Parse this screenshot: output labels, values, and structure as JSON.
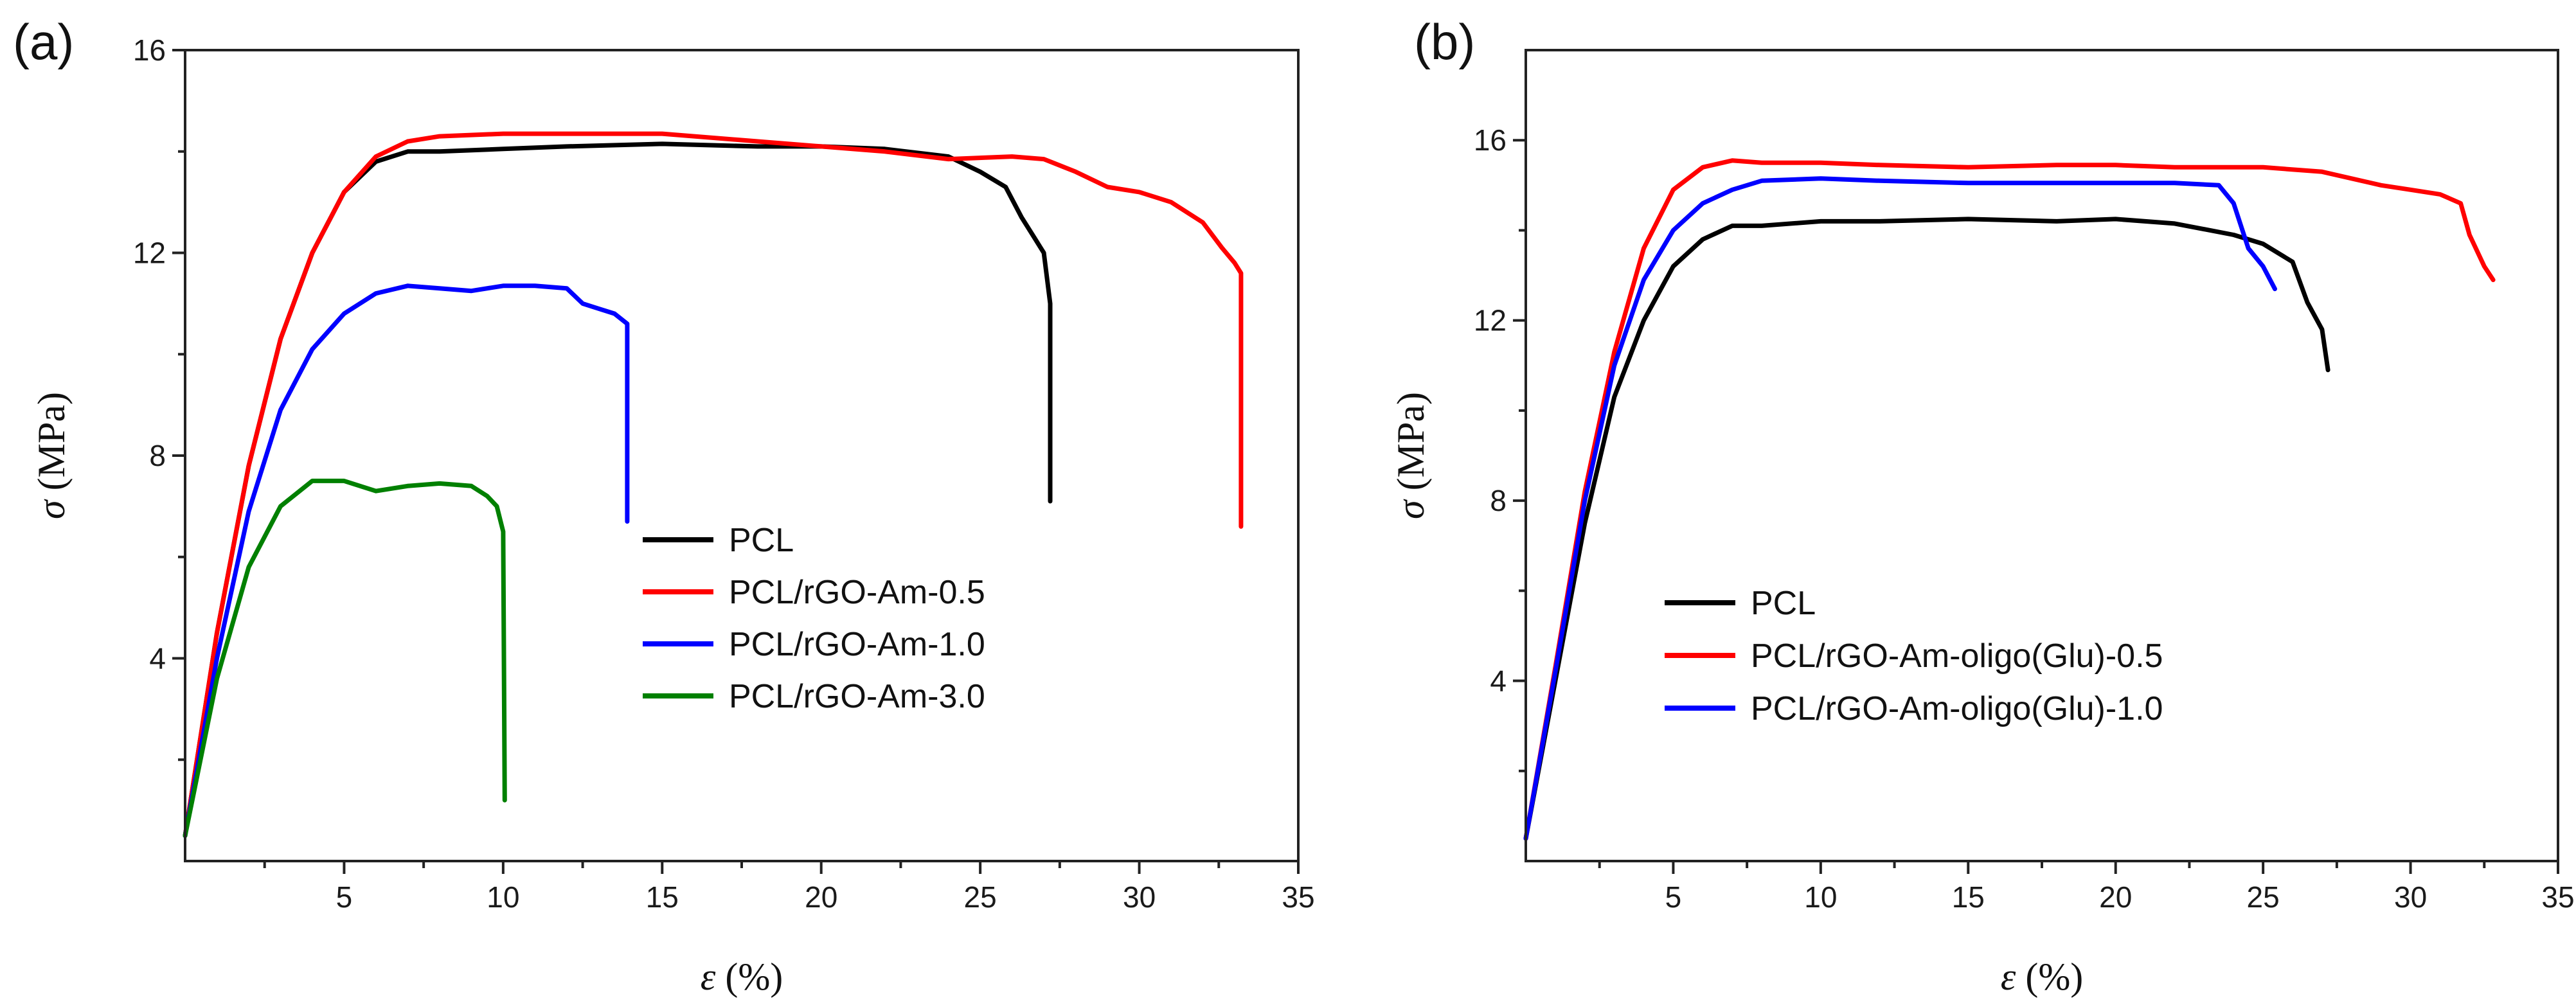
{
  "chart_data": [
    {
      "type": "line",
      "panel_label": "(a)",
      "xlabel": "ε (%)",
      "xlabel_symbol": "ε",
      "xlabel_unit": " (%)",
      "ylabel": "σ (MPa)",
      "ylabel_symbol": "σ",
      "ylabel_unit": " (MPa)",
      "xlim": [
        0,
        35
      ],
      "ylim": [
        0,
        16
      ],
      "xticks": [
        5,
        10,
        15,
        20,
        25,
        30,
        35
      ],
      "yticks": [
        4,
        8,
        12,
        16
      ],
      "grid": false,
      "legend_position": "center-right",
      "series": [
        {
          "name": "PCL",
          "color": "#000000",
          "x": [
            0,
            1,
            2,
            3,
            4,
            5,
            6,
            7,
            8,
            10,
            12,
            15,
            18,
            20,
            22,
            24,
            25,
            25.8,
            26.3,
            26.7,
            27.0,
            27.2,
            27.2
          ],
          "y": [
            0.5,
            4.5,
            7.8,
            10.3,
            12.0,
            13.2,
            13.8,
            14.0,
            14.0,
            14.05,
            14.1,
            14.15,
            14.1,
            14.1,
            14.05,
            13.9,
            13.6,
            13.3,
            12.7,
            12.3,
            12.0,
            11.0,
            7.1
          ]
        },
        {
          "name": "PCL/rGO-Am-0.5",
          "color": "#ff0000",
          "x": [
            0,
            1,
            2,
            3,
            4,
            5,
            6,
            7,
            8,
            10,
            12,
            15,
            18,
            20,
            22,
            24,
            26,
            27,
            28,
            29,
            30,
            31,
            32,
            32.6,
            33.0,
            33.2,
            33.2
          ],
          "y": [
            0.5,
            4.5,
            7.8,
            10.3,
            12.0,
            13.2,
            13.9,
            14.2,
            14.3,
            14.35,
            14.35,
            14.35,
            14.2,
            14.1,
            14.0,
            13.85,
            13.9,
            13.85,
            13.6,
            13.3,
            13.2,
            13.0,
            12.6,
            12.1,
            11.8,
            11.6,
            6.6
          ]
        },
        {
          "name": "PCL/rGO-Am-1.0",
          "color": "#0000ff",
          "x": [
            0,
            1,
            2,
            3,
            4,
            5,
            6,
            7,
            8,
            9,
            10,
            11,
            12,
            12.5,
            13.0,
            13.5,
            13.9,
            13.9
          ],
          "y": [
            0.5,
            4.0,
            6.9,
            8.9,
            10.1,
            10.8,
            11.2,
            11.35,
            11.3,
            11.25,
            11.35,
            11.35,
            11.3,
            11.0,
            10.9,
            10.8,
            10.6,
            6.7
          ]
        },
        {
          "name": "PCL/rGO-Am-3.0",
          "color": "#008000",
          "x": [
            0,
            1,
            2,
            3,
            4,
            5,
            6,
            7,
            8,
            9,
            9.5,
            9.8,
            10.0,
            10.05
          ],
          "y": [
            0.5,
            3.6,
            5.8,
            7.0,
            7.5,
            7.5,
            7.3,
            7.4,
            7.45,
            7.4,
            7.2,
            7.0,
            6.5,
            1.2
          ]
        }
      ]
    },
    {
      "type": "line",
      "panel_label": "(b)",
      "xlabel": "ε (%)",
      "xlabel_symbol": "ε",
      "xlabel_unit": " (%)",
      "ylabel": "σ (MPa)",
      "ylabel_symbol": "σ",
      "ylabel_unit": " (MPa)",
      "xlim": [
        0,
        35
      ],
      "ylim": [
        0,
        18
      ],
      "xticks": [
        5,
        10,
        15,
        20,
        25,
        30,
        35
      ],
      "yticks": [
        4,
        8,
        12,
        16
      ],
      "grid": false,
      "legend_position": "bottom-center",
      "series": [
        {
          "name": "PCL",
          "color": "#000000",
          "x": [
            0,
            1,
            2,
            3,
            4,
            5,
            6,
            7,
            8,
            10,
            12,
            15,
            18,
            20,
            22,
            24,
            25,
            26,
            26.5,
            27.0,
            27.2
          ],
          "y": [
            0.5,
            4.0,
            7.5,
            10.3,
            12.0,
            13.2,
            13.8,
            14.1,
            14.1,
            14.2,
            14.2,
            14.25,
            14.2,
            14.25,
            14.15,
            13.9,
            13.7,
            13.3,
            12.4,
            11.8,
            10.9
          ]
        },
        {
          "name": "PCL/rGO-Am-oligo(Glu)-0.5",
          "color": "#ff0000",
          "x": [
            0,
            1,
            2,
            3,
            4,
            5,
            6,
            7,
            8,
            10,
            12,
            15,
            18,
            20,
            22,
            25,
            27,
            29,
            30,
            31,
            31.7,
            32.0,
            32.5,
            32.8
          ],
          "y": [
            0.5,
            4.3,
            8.2,
            11.3,
            13.6,
            14.9,
            15.4,
            15.55,
            15.5,
            15.5,
            15.45,
            15.4,
            15.45,
            15.45,
            15.4,
            15.4,
            15.3,
            15.0,
            14.9,
            14.8,
            14.6,
            13.9,
            13.2,
            12.9
          ]
        },
        {
          "name": "PCL/rGO-Am-oligo(Glu)-1.0",
          "color": "#0000ff",
          "x": [
            0,
            1,
            2,
            3,
            4,
            5,
            6,
            7,
            8,
            10,
            12,
            15,
            18,
            20,
            22,
            23.5,
            24.0,
            24.5,
            25.0,
            25.4
          ],
          "y": [
            0.5,
            4.2,
            8.0,
            11.0,
            12.9,
            14.0,
            14.6,
            14.9,
            15.1,
            15.15,
            15.1,
            15.05,
            15.05,
            15.05,
            15.05,
            15.0,
            14.6,
            13.6,
            13.2,
            12.7
          ]
        }
      ]
    }
  ]
}
